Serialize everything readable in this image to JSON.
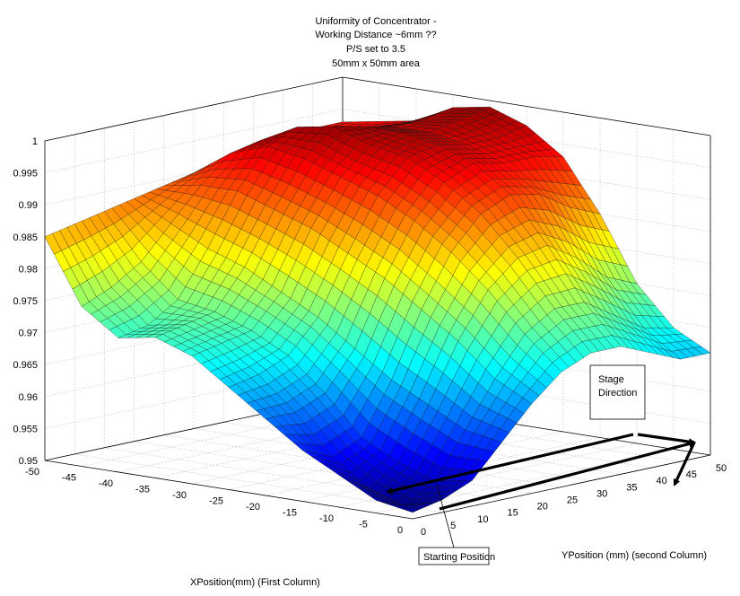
{
  "chart_data": {
    "type": "surface",
    "title_lines": [
      "Uniformity of Concentrator  -",
      "Working Distance ~6mm ??",
      "P/S set to 3.5",
      "50mm x 50mm area"
    ],
    "xlabel": "XPosition(mm) (First Column)",
    "ylabel": "YPosition (mm) (second Column)",
    "zlabel": "",
    "xlim": [
      -50,
      0
    ],
    "ylim": [
      0,
      50
    ],
    "zlim": [
      0.95,
      1.0
    ],
    "x_ticks": [
      "-50",
      "-45",
      "-40",
      "-35",
      "-30",
      "-25",
      "-20",
      "-15",
      "-10",
      "-5",
      "0"
    ],
    "y_ticks": [
      "0",
      "5",
      "10",
      "15",
      "20",
      "25",
      "30",
      "35",
      "40",
      "45",
      "50"
    ],
    "z_ticks": [
      "0.95",
      "0.955",
      "0.96",
      "0.965",
      "0.97",
      "0.975",
      "0.98",
      "0.985",
      "0.99",
      "0.995",
      "1"
    ],
    "grid": true,
    "colormap": "jet",
    "x_samples": [
      -50,
      -45,
      -40,
      -35,
      -30,
      -25,
      -20,
      -15,
      -10,
      -5,
      0
    ],
    "y_samples": [
      0,
      5,
      10,
      15,
      20,
      25,
      30,
      35,
      40,
      45,
      50
    ],
    "z": [
      [
        0.985,
        0.986,
        0.987,
        0.988,
        0.989,
        0.99,
        0.991,
        0.992,
        0.993,
        0.993,
        0.993
      ],
      [
        0.975,
        0.977,
        0.98,
        0.985,
        0.99,
        0.994,
        0.995,
        0.994,
        0.993,
        0.993,
        0.994
      ],
      [
        0.971,
        0.972,
        0.975,
        0.982,
        0.99,
        0.996,
        0.998,
        0.997,
        0.996,
        0.995,
        0.995
      ],
      [
        0.972,
        0.973,
        0.974,
        0.98,
        0.988,
        0.995,
        0.999,
        0.998,
        0.997,
        0.997,
        0.998
      ],
      [
        0.97,
        0.971,
        0.972,
        0.977,
        0.986,
        0.993,
        0.997,
        0.998,
        0.997,
        0.998,
        0.999
      ],
      [
        0.966,
        0.967,
        0.969,
        0.974,
        0.983,
        0.991,
        0.996,
        0.997,
        0.996,
        0.996,
        0.997
      ],
      [
        0.962,
        0.962,
        0.964,
        0.97,
        0.98,
        0.988,
        0.993,
        0.995,
        0.994,
        0.994,
        0.993
      ],
      [
        0.958,
        0.956,
        0.958,
        0.966,
        0.976,
        0.984,
        0.989,
        0.991,
        0.99,
        0.987,
        0.985
      ],
      [
        0.955,
        0.952,
        0.955,
        0.963,
        0.972,
        0.979,
        0.983,
        0.984,
        0.981,
        0.977,
        0.975
      ],
      [
        0.952,
        0.95,
        0.953,
        0.96,
        0.967,
        0.973,
        0.976,
        0.976,
        0.973,
        0.97,
        0.969
      ],
      [
        0.951,
        0.952,
        0.954,
        0.959,
        0.964,
        0.968,
        0.97,
        0.97,
        0.968,
        0.966,
        0.966
      ]
    ],
    "annotations": {
      "stage_direction": "Stage\nDirection",
      "starting_position": "Starting Position"
    }
  }
}
